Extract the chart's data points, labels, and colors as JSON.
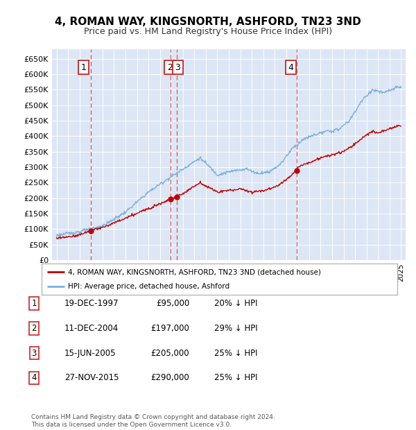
{
  "title": "4, ROMAN WAY, KINGSNORTH, ASHFORD, TN23 3ND",
  "subtitle": "Price paid vs. HM Land Registry's House Price Index (HPI)",
  "plot_bg_color": "#dce6f5",
  "ylim": [
    0,
    680000
  ],
  "yticks": [
    0,
    50000,
    100000,
    150000,
    200000,
    250000,
    300000,
    350000,
    400000,
    450000,
    500000,
    550000,
    600000,
    650000
  ],
  "ytick_labels": [
    "£0",
    "£50K",
    "£100K",
    "£150K",
    "£200K",
    "£250K",
    "£300K",
    "£350K",
    "£400K",
    "£450K",
    "£500K",
    "£550K",
    "£600K",
    "£650K"
  ],
  "xlim_start": 1994.6,
  "xlim_end": 2025.4,
  "hpi_color": "#7ab0de",
  "price_color": "#c00000",
  "dashed_color": "#e05050",
  "transactions": [
    {
      "num": 1,
      "year": 1997.96,
      "price": 95000
    },
    {
      "num": 2,
      "year": 2004.94,
      "price": 197000
    },
    {
      "num": 3,
      "year": 2005.46,
      "price": 205000
    },
    {
      "num": 4,
      "year": 2015.9,
      "price": 290000
    }
  ],
  "legend_label_price": "4, ROMAN WAY, KINGSNORTH, ASHFORD, TN23 3ND (detached house)",
  "legend_label_hpi": "HPI: Average price, detached house, Ashford",
  "footer": "Contains HM Land Registry data © Crown copyright and database right 2024.\nThis data is licensed under the Open Government Licence v3.0.",
  "table_rows": [
    {
      "num": 1,
      "date": "19-DEC-1997",
      "price": "£95,000",
      "pct": "20% ↓ HPI"
    },
    {
      "num": 2,
      "date": "11-DEC-2004",
      "price": "£197,000",
      "pct": "29% ↓ HPI"
    },
    {
      "num": 3,
      "date": "15-JUN-2005",
      "price": "£205,000",
      "pct": "25% ↓ HPI"
    },
    {
      "num": 4,
      "date": "27-NOV-2015",
      "price": "£290,000",
      "pct": "25% ↓ HPI"
    }
  ]
}
